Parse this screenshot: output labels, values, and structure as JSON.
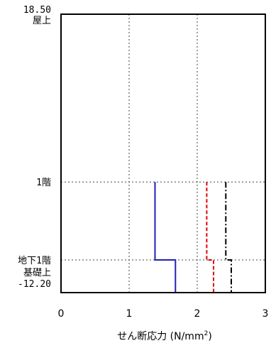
{
  "chart_data": {
    "type": "line",
    "xlabel_main": "せん断応力 (N/mm",
    "xlabel_sup": "2",
    "xlabel_close": ")",
    "xlim": [
      0,
      3
    ],
    "ylim": [
      -12.2,
      18.5
    ],
    "x_ticks": [
      "0",
      "1",
      "2",
      "3"
    ],
    "x_tick_values": [
      0,
      1,
      2,
      3
    ],
    "y_labels": [
      {
        "id": "top_value",
        "text": "18.50",
        "level": 18.5
      },
      {
        "id": "top_name",
        "text": "屋上",
        "level": 18.5
      },
      {
        "id": "floor1",
        "text": "1階",
        "level": 0.0
      },
      {
        "id": "b1",
        "text": "地下1階",
        "level": -8.6
      },
      {
        "id": "found_name",
        "text": "基礎上",
        "level": -12.2
      },
      {
        "id": "found_value",
        "text": "-12.20",
        "level": -12.2
      }
    ],
    "grid": {
      "x": [
        1,
        2
      ],
      "y_levels": [
        0.0,
        -8.6
      ]
    },
    "series": [
      {
        "color": "#1f1fb4",
        "style": "solid",
        "points": [
          [
            1.38,
            0.0
          ],
          [
            1.38,
            -8.6
          ],
          [
            1.68,
            -8.6
          ],
          [
            1.68,
            -12.2
          ]
        ]
      },
      {
        "color": "#e00000",
        "style": "dashed",
        "points": [
          [
            2.14,
            0.0
          ],
          [
            2.14,
            -8.6
          ],
          [
            2.24,
            -8.6
          ],
          [
            2.24,
            -12.2
          ]
        ]
      },
      {
        "color": "#000000",
        "style": "dashdot",
        "points": [
          [
            2.42,
            0.0
          ],
          [
            2.42,
            -8.6
          ],
          [
            2.5,
            -8.6
          ],
          [
            2.5,
            -12.2
          ]
        ]
      }
    ]
  }
}
